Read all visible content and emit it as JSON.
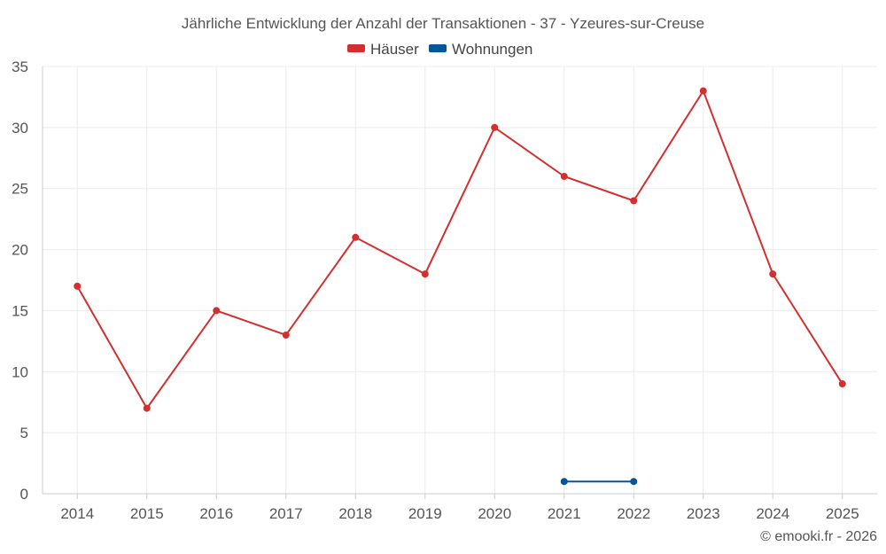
{
  "chart_data": {
    "type": "line",
    "title": "Jährliche Entwicklung der Anzahl der Transaktionen - 37 - Yzeures-sur-Creuse",
    "xlabel": "",
    "ylabel": "",
    "x": [
      "2014",
      "2015",
      "2016",
      "2017",
      "2018",
      "2019",
      "2020",
      "2021",
      "2022",
      "2023",
      "2024",
      "2025"
    ],
    "ylim": [
      0,
      35
    ],
    "yticks": [
      "0",
      "5",
      "10",
      "15",
      "20",
      "25",
      "30",
      "35"
    ],
    "grid": true,
    "legend_position": "top-center",
    "series": [
      {
        "name": "Häuser",
        "color": "#d32f2f",
        "values": [
          17,
          7,
          15,
          13,
          21,
          18,
          30,
          26,
          24,
          33,
          18,
          9
        ]
      },
      {
        "name": "Wohnungen",
        "color": "#01579b",
        "values": [
          null,
          null,
          null,
          null,
          null,
          null,
          null,
          1,
          1,
          null,
          null,
          null
        ]
      }
    ]
  },
  "credit": "© emooki.fr - 2026"
}
